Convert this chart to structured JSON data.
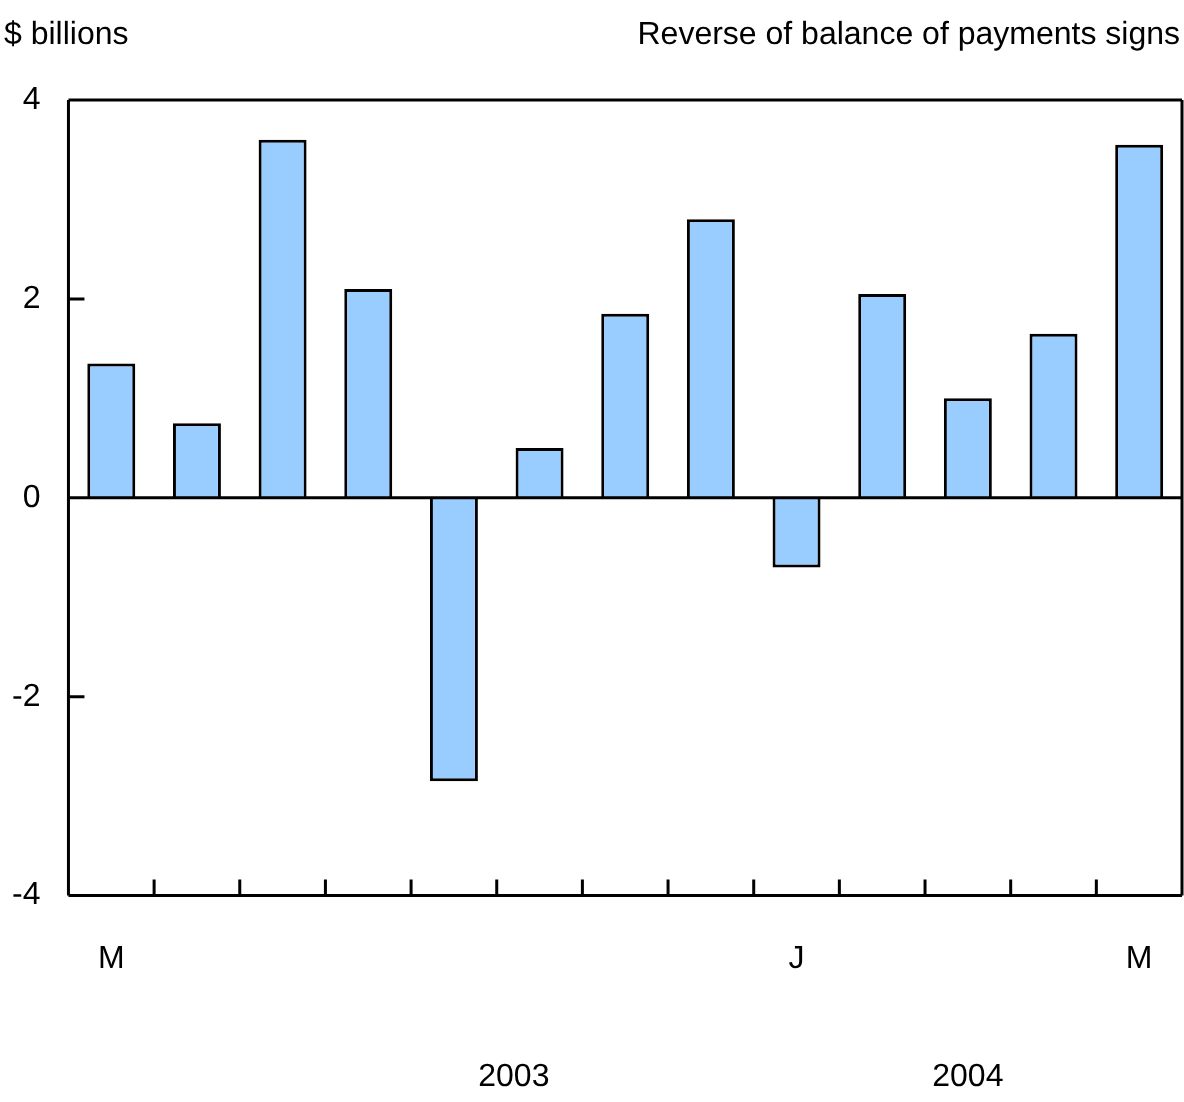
{
  "chart_data": {
    "type": "bar",
    "ylabel": "$ billions",
    "subtitle": "Reverse of balance of payments signs",
    "categories": [
      "M",
      null,
      null,
      null,
      null,
      null,
      null,
      null,
      "J",
      null,
      null,
      null,
      "M"
    ],
    "values": [
      1.35,
      0.75,
      3.6,
      2.1,
      -2.85,
      0.5,
      1.85,
      2.8,
      -0.7,
      2.05,
      1.0,
      1.65,
      3.55
    ],
    "color": "#99ccff",
    "ylim": [
      -4,
      4
    ],
    "yticks": [
      -4,
      -2,
      0,
      2,
      4
    ],
    "annotations": [
      "2003",
      "2004"
    ]
  }
}
